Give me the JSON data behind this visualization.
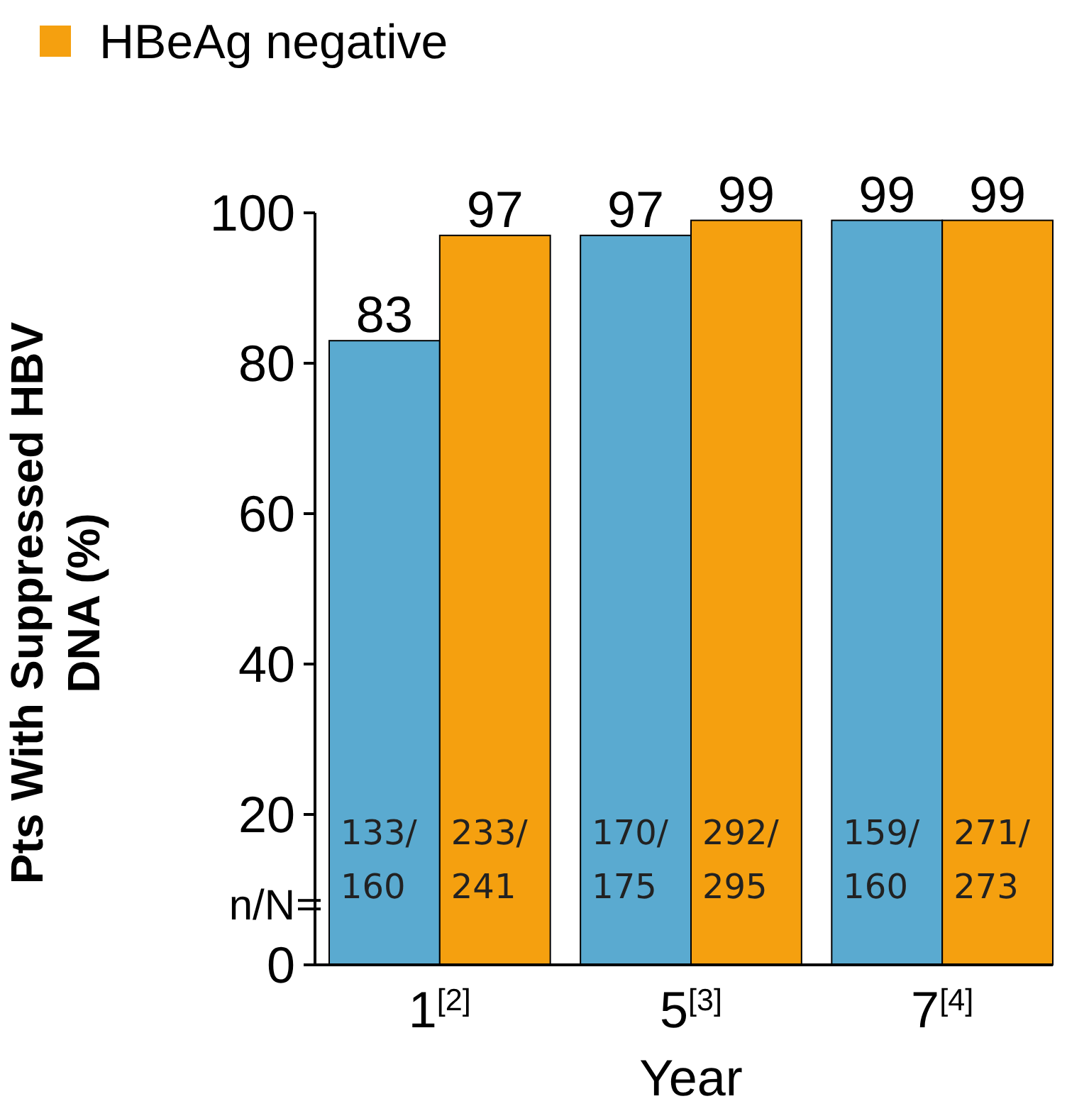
{
  "chart_data": {
    "type": "bar",
    "ylabel": "Pts With Suppressed HBV DNA (%)",
    "xlabel": "Year",
    "categories": [
      "1$^{[2]}$",
      "5$^{[3]}$",
      "7$^{[4]}$"
    ],
    "series": [
      {
        "color": "#5aaad0",
        "values": [
          83,
          97,
          99
        ]
      },
      {
        "name": "HBeAg negative",
        "color": "#f5a00f",
        "values": [
          97,
          99,
          99
        ]
      }
    ],
    "ylim": [
      0,
      100
    ],
    "yticks": [
      0,
      20,
      40,
      60,
      80,
      100
    ],
    "data_labels": true,
    "legend": "top left",
    "annotations": [
      "n/N",
      "133/160",
      "233/241",
      "170/175",
      "292/295",
      "159/160",
      "271/273"
    ]
  }
}
